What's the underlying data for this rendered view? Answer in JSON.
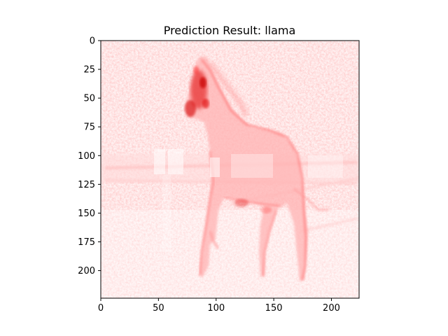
{
  "chart_data": {
    "type": "heatmap",
    "title": "Prediction Result: llama",
    "xlabel": "",
    "ylabel": "",
    "xlim": [
      0,
      224
    ],
    "ylim": [
      224,
      0
    ],
    "x_ticks": [
      0,
      50,
      100,
      150,
      200
    ],
    "y_ticks": [
      0,
      25,
      50,
      75,
      100,
      125,
      150,
      175,
      200
    ],
    "colormap": "Reds",
    "color_low": "#ffffff",
    "color_high": "#e00000",
    "grid": false,
    "legend": "none"
  }
}
